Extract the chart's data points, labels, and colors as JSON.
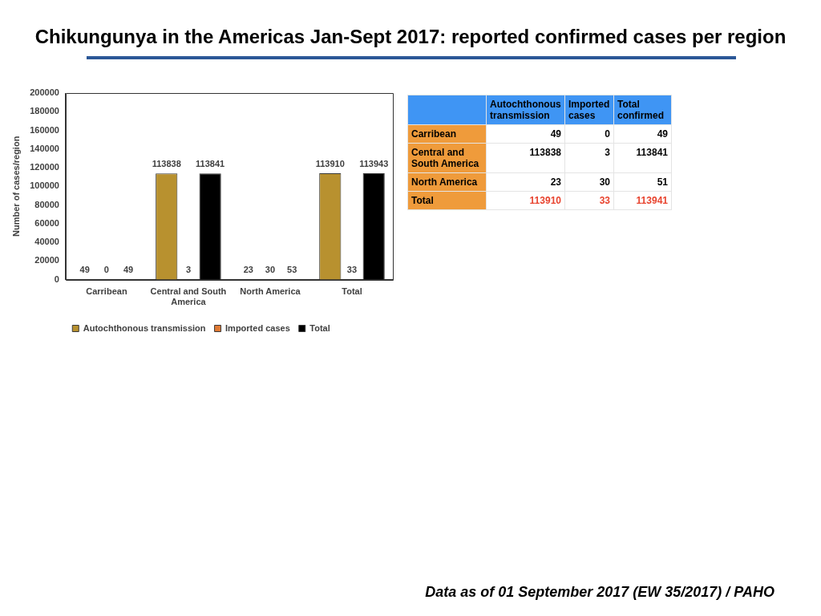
{
  "chart_data": [
    {
      "type": "bar",
      "title": "Chikungunya in the Americas Jan-Sept 2017: reported confirmed cases per region",
      "ylabel": "Number of cases/region",
      "categories": [
        "Carribean",
        "Central and South America",
        "North America",
        "Total"
      ],
      "series": [
        {
          "name": "Autochthonous transmission",
          "color": "#b8912f",
          "values": [
            49,
            113838,
            23,
            113910
          ]
        },
        {
          "name": "Imported cases",
          "color": "#e07a34",
          "values": [
            0,
            3,
            30,
            33
          ]
        },
        {
          "name": "Total",
          "color": "#000000",
          "values": [
            49,
            113841,
            53,
            113943
          ]
        }
      ],
      "ylim": [
        0,
        200000
      ],
      "yticks": [
        0,
        20000,
        40000,
        60000,
        80000,
        100000,
        120000,
        140000,
        160000,
        180000,
        200000
      ],
      "data_labels": true,
      "legend": "bottom",
      "annotations": [
        "Data as of 01 September 2017 (EW 35/2017) / PAHO"
      ]
    },
    {
      "type": "other",
      "categories": [
        "Carribean",
        "Central and South America",
        "North America",
        "Total"
      ],
      "series": [
        {
          "name": "Autochthonous transmission",
          "values": [
            49,
            113838,
            23,
            113910
          ]
        },
        {
          "name": "Imported cases",
          "values": [
            0,
            3,
            30,
            33
          ]
        },
        {
          "name": "Total confirmed",
          "values": [
            49,
            113841,
            51,
            113941
          ]
        }
      ],
      "data_labels": true
    }
  ]
}
